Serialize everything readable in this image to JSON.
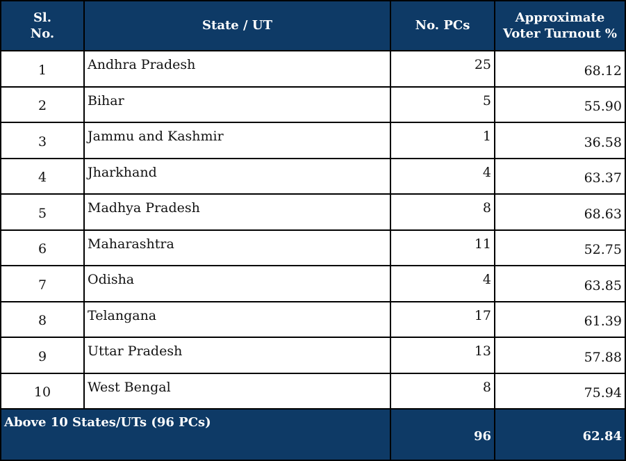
{
  "table": {
    "headers": {
      "sl_line1": "Sl.",
      "sl_line2": "No.",
      "state": "State / UT",
      "pcs": "No. PCs",
      "turnout_line1": "Approximate",
      "turnout_line2": "Voter Turnout %"
    },
    "rows": [
      {
        "sl": "1",
        "state": "Andhra Pradesh",
        "pcs": "25",
        "turnout": "68.12"
      },
      {
        "sl": "2",
        "state": "Bihar",
        "pcs": "5",
        "turnout": "55.90"
      },
      {
        "sl": "3",
        "state": "Jammu and Kashmir",
        "pcs": "1",
        "turnout": "36.58"
      },
      {
        "sl": "4",
        "state": "Jharkhand",
        "pcs": "4",
        "turnout": "63.37"
      },
      {
        "sl": "5",
        "state": "Madhya Pradesh",
        "pcs": "8",
        "turnout": "68.63"
      },
      {
        "sl": "6",
        "state": "Maharashtra",
        "pcs": "11",
        "turnout": "52.75"
      },
      {
        "sl": "7",
        "state": "Odisha",
        "pcs": "4",
        "turnout": "63.85"
      },
      {
        "sl": "8",
        "state": "Telangana",
        "pcs": "17",
        "turnout": "61.39"
      },
      {
        "sl": "9",
        "state": "Uttar Pradesh",
        "pcs": "13",
        "turnout": "57.88"
      },
      {
        "sl": "10",
        "state": "West Bengal",
        "pcs": "8",
        "turnout": "75.94"
      }
    ],
    "total": {
      "label": "Above 10 States/UTs (96 PCs)",
      "pcs": "96",
      "turnout": "62.84"
    }
  },
  "colors": {
    "header_bg": "#0e3a66",
    "header_text": "#ffffff",
    "border": "#000000"
  }
}
